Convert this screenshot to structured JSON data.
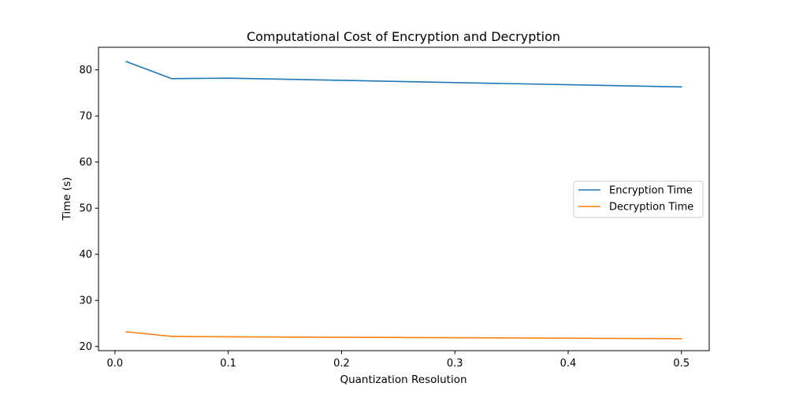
{
  "chart_data": {
    "type": "line",
    "title": "Computational Cost of Encryption and Decryption",
    "xlabel": "Quantization Resolution",
    "ylabel": "Time (s)",
    "xlim": [
      -0.0145,
      0.5245
    ],
    "ylim": [
      19.1,
      84.9
    ],
    "xticks": [
      0.0,
      0.1,
      0.2,
      0.3,
      0.4,
      0.5
    ],
    "xtick_labels": [
      "0.0",
      "0.1",
      "0.2",
      "0.3",
      "0.4",
      "0.5"
    ],
    "yticks": [
      20,
      30,
      40,
      50,
      60,
      70,
      80
    ],
    "ytick_labels": [
      "20",
      "30",
      "40",
      "50",
      "60",
      "70",
      "80"
    ],
    "grid": false,
    "legend_position": "center-right",
    "x": [
      0.01,
      0.05,
      0.1,
      0.5
    ],
    "series": [
      {
        "name": "Encryption Time",
        "color": "#1f77b4",
        "values": [
          81.8,
          78.1,
          78.2,
          76.3
        ]
      },
      {
        "name": "Decryption Time",
        "color": "#ff7f0e",
        "values": [
          23.2,
          22.2,
          22.1,
          21.7
        ]
      }
    ]
  }
}
